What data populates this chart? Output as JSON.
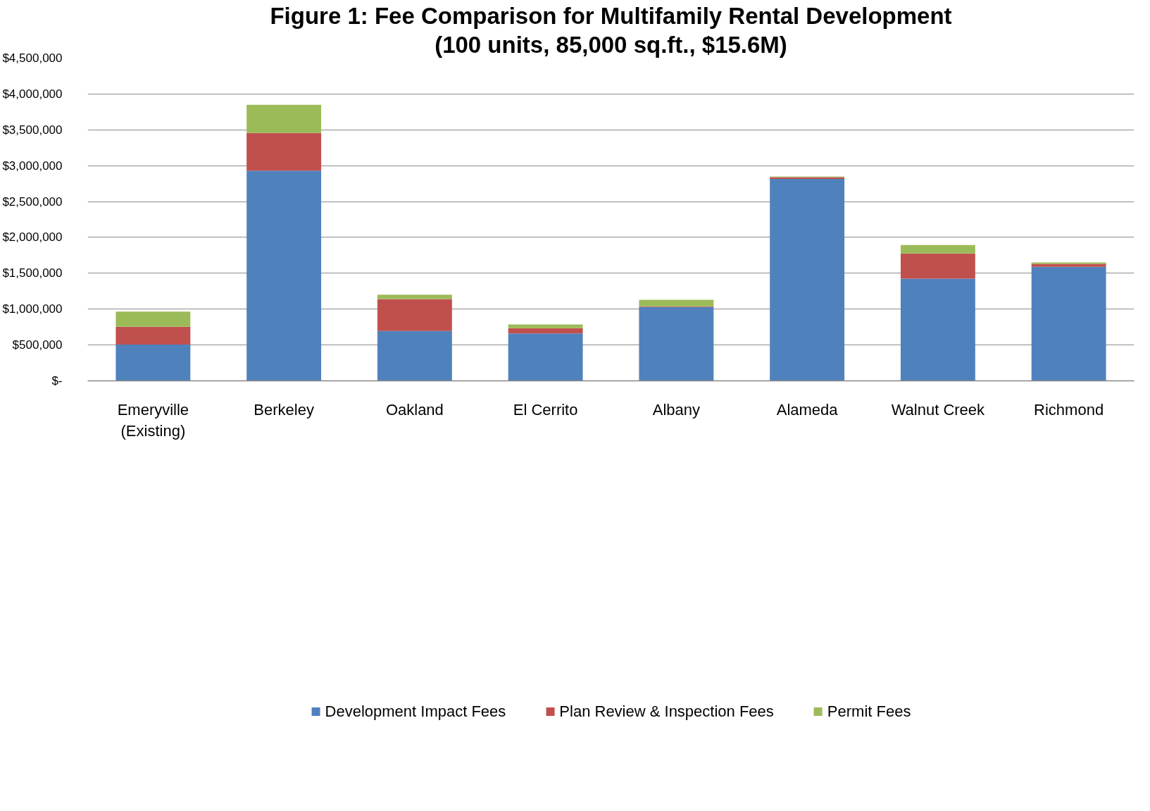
{
  "chart_data": {
    "type": "bar",
    "title": "Figure 1: Fee Comparison for Multifamily Rental Development",
    "subtitle": "(100 units, 85,000 sq.ft., $15.6M)",
    "categories": [
      "Emeryville\n(Existing)",
      "Berkeley",
      "Oakland",
      "El Cerrito",
      "Albany",
      "Alameda",
      "Walnut Creek",
      "Richmond"
    ],
    "series": [
      {
        "name": "Development Impact Fees",
        "color": "#4f81bd",
        "values": [
          505000,
          2930000,
          695000,
          660000,
          1030000,
          2815000,
          1425000,
          1590000
        ]
      },
      {
        "name": "Plan Review & Inspection Fees",
        "color": "#c0504d",
        "values": [
          250000,
          525000,
          445000,
          75000,
          10000,
          25000,
          350000,
          40000
        ]
      },
      {
        "name": "Permit Fees",
        "color": "#9bbb59",
        "values": [
          210000,
          395000,
          60000,
          50000,
          90000,
          10000,
          120000,
          20000
        ]
      }
    ],
    "stacked": true,
    "ylim": [
      0,
      4500000
    ],
    "yticks": [
      {
        "value": 0,
        "label": "$-"
      },
      {
        "value": 500000,
        "label": "$500,000"
      },
      {
        "value": 1000000,
        "label": "$1,000,000"
      },
      {
        "value": 1500000,
        "label": "$1,500,000"
      },
      {
        "value": 2000000,
        "label": "$2,000,000"
      },
      {
        "value": 2500000,
        "label": "$2,500,000"
      },
      {
        "value": 3000000,
        "label": "$3,000,000"
      },
      {
        "value": 3500000,
        "label": "$3,500,000"
      },
      {
        "value": 4000000,
        "label": "$4,000,000"
      },
      {
        "value": 4500000,
        "label": "$4,500,000"
      }
    ],
    "grid": "y",
    "legend": "bottom"
  }
}
